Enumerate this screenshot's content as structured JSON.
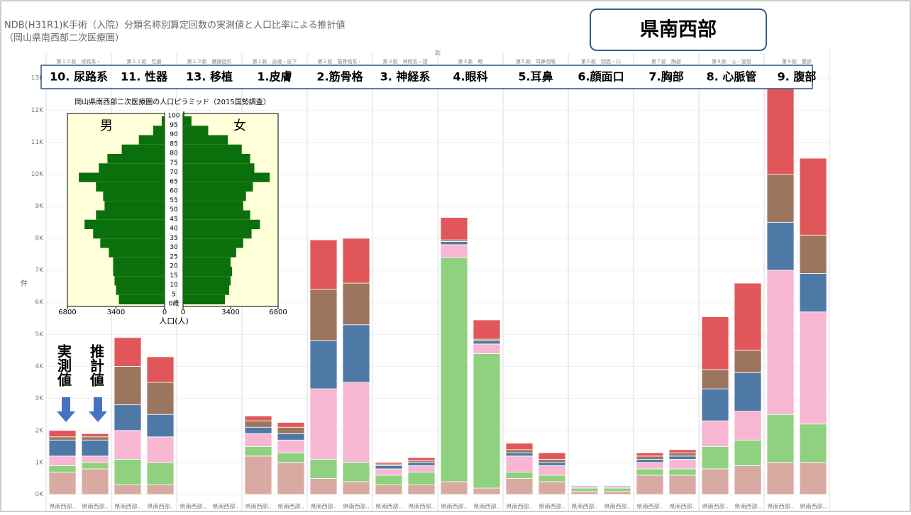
{
  "chart_data": [
    {
      "type": "bar",
      "stacked": true,
      "title": "NDB(H31R1)K手術（入院）分類名称別算定回数の実測値と人口比率による推計値",
      "subtitle": "（岡山県南西部二次医療圏）",
      "region": "県南西部",
      "annotations": [
        "実測値",
        "推計値"
      ],
      "y_label": "件",
      "group_header": "款",
      "groups": [
        "第１０款　尿路系・",
        "第１１款　性器",
        "第１３款　臓器提供",
        "第１款　皮膚・皮下",
        "第２款　筋骨格系・",
        "第３款　神経系・頭",
        "第４款　眼",
        "第５款　耳鼻咽喉",
        "第６款　顔面・口",
        "第７款　胸部",
        "第８款　心・脈管",
        "第９款　腹部"
      ],
      "group_labels": [
        "10. 尿路系",
        "11. 性器",
        "13. 移植",
        "1.皮膚",
        "2.筋骨格",
        "3. 神経系",
        "4.眼科",
        "5.耳鼻",
        "6.顔面口",
        "7.胸部",
        "8. 心脈管",
        "9. 腹部"
      ],
      "categories": [
        "県南西部..",
        "県南西部..",
        "県南西部..",
        "県南西部..",
        "県南西部..",
        "県南西部..",
        "県南西部..",
        "県南西部..",
        "県南西部..",
        "県南西部..",
        "県南西部..",
        "県南西部..",
        "県南西部..",
        "県南西部..",
        "県南西部..",
        "県南西部..",
        "県南西部..",
        "県南西部..",
        "県南西部..",
        "県南西部..",
        "県南西部..",
        "県南西部..",
        "県南西部..",
        "県南西部.."
      ],
      "series": [
        {
          "color": "#d8aaa2",
          "values": [
            700,
            800,
            300,
            300,
            0,
            0,
            1200,
            1000,
            500,
            400,
            300,
            300,
            400,
            200,
            500,
            400,
            100,
            100,
            600,
            600,
            800,
            900,
            1000,
            1000
          ]
        },
        {
          "color": "#8fd17f",
          "values": [
            200,
            200,
            800,
            700,
            0,
            0,
            300,
            300,
            600,
            600,
            300,
            400,
            7000,
            4200,
            200,
            200,
            100,
            100,
            200,
            200,
            700,
            800,
            1500,
            1200
          ]
        },
        {
          "color": "#f7b6d2",
          "values": [
            300,
            200,
            900,
            800,
            0,
            0,
            400,
            400,
            2200,
            2500,
            200,
            200,
            400,
            300,
            500,
            300,
            50,
            50,
            200,
            300,
            800,
            900,
            4500,
            3500
          ]
        },
        {
          "color": "#4e79a7",
          "values": [
            500,
            500,
            800,
            700,
            0,
            0,
            200,
            200,
            1500,
            1800,
            100,
            100,
            100,
            100,
            100,
            100,
            30,
            30,
            100,
            100,
            1000,
            1200,
            1500,
            1200
          ]
        },
        {
          "color": "#9c755f",
          "values": [
            100,
            100,
            1200,
            1000,
            0,
            0,
            200,
            200,
            1600,
            1300,
            50,
            50,
            50,
            50,
            100,
            100,
            10,
            10,
            100,
            100,
            600,
            700,
            1500,
            1200
          ]
        },
        {
          "color": "#e15759",
          "values": [
            200,
            100,
            900,
            800,
            0,
            0,
            150,
            150,
            1550,
            1400,
            50,
            100,
            700,
            600,
            200,
            200,
            10,
            10,
            100,
            100,
            1650,
            2100,
            2700,
            2400
          ]
        }
      ],
      "ylim": [
        -220,
        14000
      ],
      "yticks": [
        {
          "value": 0,
          "label": "0K"
        },
        {
          "value": 1000,
          "label": "1K"
        },
        {
          "value": 2000,
          "label": "2K"
        },
        {
          "value": 3000,
          "label": "3K"
        },
        {
          "value": 4000,
          "label": "4K"
        },
        {
          "value": 5000,
          "label": "5K"
        },
        {
          "value": 6000,
          "label": "6K"
        },
        {
          "value": 7000,
          "label": "7K"
        },
        {
          "value": 8000,
          "label": "8K"
        },
        {
          "value": 9000,
          "label": "9K"
        },
        {
          "value": 10000,
          "label": "10K"
        },
        {
          "value": 11000,
          "label": "11K"
        },
        {
          "value": 12000,
          "label": "12K"
        },
        {
          "value": 13000,
          "label": "13K"
        }
      ]
    },
    {
      "type": "pyramid",
      "title": "岡山県南西部二次医療圏の人口ピラミッド（2015国勢調査）",
      "x_label": "人口(人)",
      "categories": [
        "0歳",
        "5",
        "10",
        "15",
        "20",
        "25",
        "30",
        "35",
        "40",
        "45",
        "50",
        "55",
        "60",
        "65",
        "70",
        "75",
        "80",
        "85",
        "90",
        "95",
        "100"
      ],
      "series": [
        {
          "name": "男",
          "color": "#0b700b",
          "values": [
            3200,
            3400,
            3500,
            3600,
            3600,
            3900,
            4500,
            5000,
            5600,
            4800,
            4200,
            4300,
            4800,
            6000,
            4600,
            4000,
            3000,
            1800,
            800,
            200,
            30
          ]
        },
        {
          "name": "女",
          "color": "#0b700b",
          "values": [
            3000,
            3300,
            3400,
            3500,
            3400,
            3800,
            4300,
            4900,
            5500,
            4800,
            4300,
            4500,
            5000,
            6200,
            5100,
            4800,
            4200,
            3200,
            1800,
            600,
            100
          ]
        }
      ],
      "xlim": [
        0,
        6800
      ],
      "xticks": [
        0,
        3400,
        6800
      ]
    }
  ]
}
